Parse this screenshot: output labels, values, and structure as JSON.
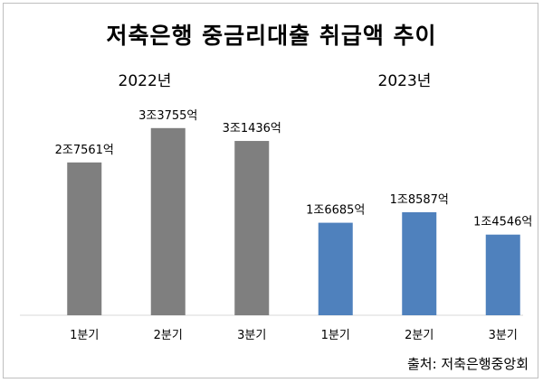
{
  "title": "저축은행 중금리대출 취급액 추이",
  "groups": [
    {
      "label": "2022년"
    },
    {
      "label": "2023년"
    }
  ],
  "source": "출처: 저축은행중앙회",
  "colors": {
    "2022년": "#7f7f7f",
    "2023년": "#4f81bd"
  },
  "chart_data": {
    "type": "bar",
    "title": "저축은행 중금리대출 취급액 추이",
    "categories": [
      "1분기",
      "2분기",
      "3분기",
      "1분기",
      "2분기",
      "3분기"
    ],
    "series": [
      {
        "name": "2022년",
        "values": [
          27561,
          33755,
          31436,
          null,
          null,
          null
        ],
        "labels": [
          "2조7561억",
          "3조3755억",
          "3조1436억",
          "",
          "",
          ""
        ]
      },
      {
        "name": "2023년",
        "values": [
          null,
          null,
          null,
          16685,
          18587,
          14546
        ],
        "labels": [
          "",
          "",
          "",
          "1조6685억",
          "1조8587억",
          "1조4546억"
        ]
      }
    ],
    "unit": "억원",
    "grid": false,
    "legend": "none"
  }
}
